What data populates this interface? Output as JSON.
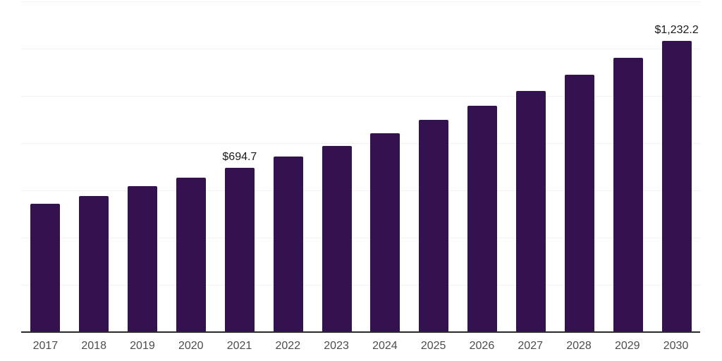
{
  "chart_data": {
    "type": "bar",
    "title": "",
    "xlabel": "",
    "ylabel": "",
    "categories": [
      "2017",
      "2018",
      "2019",
      "2020",
      "2021",
      "2022",
      "2023",
      "2024",
      "2025",
      "2026",
      "2027",
      "2028",
      "2029",
      "2030"
    ],
    "values": [
      543,
      577,
      618,
      653,
      694.7,
      743,
      789,
      843,
      898,
      958,
      1020,
      1089,
      1161,
      1232.2
    ],
    "data_labels": [
      {
        "category": "2021",
        "text": "$694.7"
      },
      {
        "category": "2030",
        "text": "$1,232.2"
      }
    ],
    "ylim": [
      0,
      1400
    ],
    "gridline_step": 200,
    "grid": "horizontal gridlines only, no y-axis tick labels",
    "legend": "none",
    "colors": {
      "bar": "#341250",
      "axis_line": "#2b2b2b",
      "gridline": "#f2f2f2",
      "data_label": "#1a1a1a",
      "tick_label": "#4d4d4d"
    }
  }
}
